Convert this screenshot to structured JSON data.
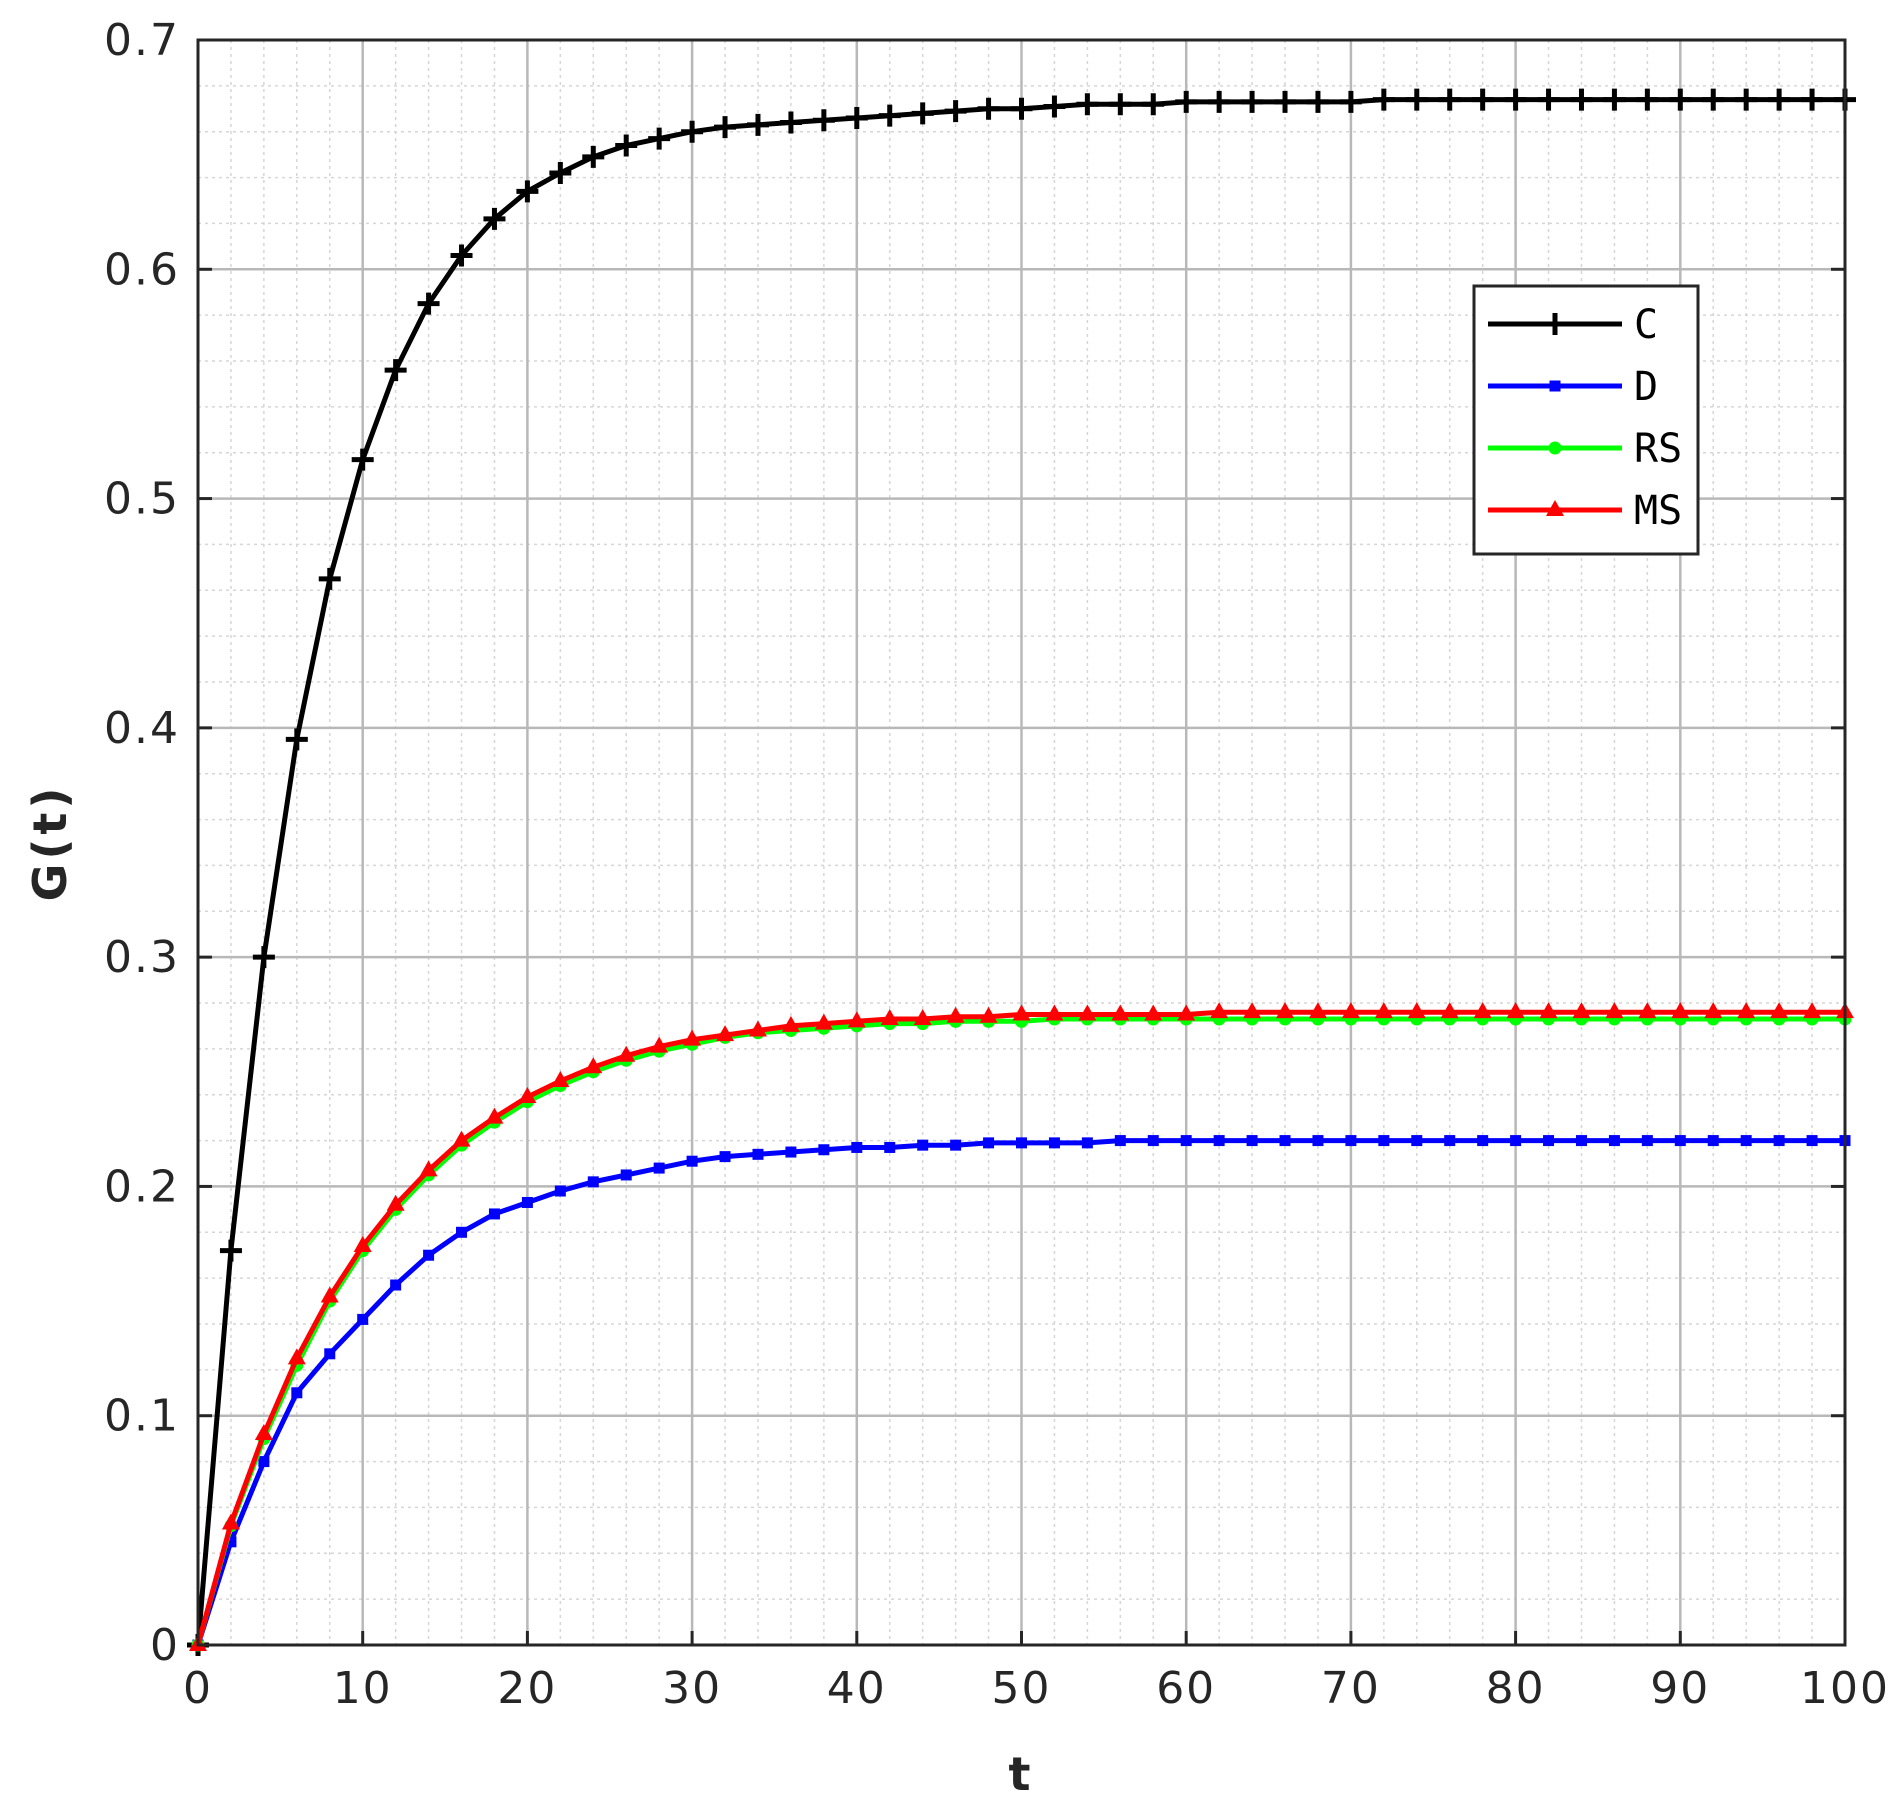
{
  "chart_data": {
    "type": "line",
    "title": "",
    "xlabel": "t",
    "ylabel": "G(t)",
    "xlim": [
      0,
      100
    ],
    "ylim": [
      0,
      0.7
    ],
    "xticks": [
      0,
      10,
      20,
      30,
      40,
      50,
      60,
      70,
      80,
      90,
      100
    ],
    "xtick_labels": [
      "0",
      "10",
      "20",
      "30",
      "40",
      "50",
      "60",
      "70",
      "80",
      "90",
      "100"
    ],
    "yticks": [
      0,
      0.1,
      0.2,
      0.3,
      0.4,
      0.5,
      0.6,
      0.7
    ],
    "ytick_labels": [
      "0",
      "0.1",
      "0.2",
      "0.3",
      "0.4",
      "0.5",
      "0.6",
      "0.7"
    ],
    "grid": true,
    "minor_grid": true,
    "legend_position": "top-right",
    "x": [
      0,
      2,
      4,
      6,
      8,
      10,
      12,
      14,
      16,
      18,
      20,
      22,
      24,
      26,
      28,
      30,
      32,
      34,
      36,
      38,
      40,
      42,
      44,
      46,
      48,
      50,
      52,
      54,
      56,
      58,
      60,
      62,
      64,
      66,
      68,
      70,
      72,
      74,
      76,
      78,
      80,
      82,
      84,
      86,
      88,
      90,
      92,
      94,
      96,
      98,
      100
    ],
    "series": [
      {
        "name": "C",
        "color": "#000000",
        "marker": "plus",
        "values": [
          0,
          0.172,
          0.3,
          0.395,
          0.465,
          0.517,
          0.556,
          0.585,
          0.606,
          0.622,
          0.634,
          0.642,
          0.649,
          0.654,
          0.657,
          0.66,
          0.662,
          0.663,
          0.664,
          0.665,
          0.666,
          0.667,
          0.668,
          0.669,
          0.67,
          0.67,
          0.671,
          0.672,
          0.672,
          0.672,
          0.673,
          0.673,
          0.673,
          0.673,
          0.673,
          0.673,
          0.674,
          0.674,
          0.674,
          0.674,
          0.674,
          0.674,
          0.674,
          0.674,
          0.674,
          0.674,
          0.674,
          0.674,
          0.674,
          0.674,
          0.674
        ]
      },
      {
        "name": "D",
        "color": "#0000ff",
        "marker": "square",
        "values": [
          0,
          0.045,
          0.08,
          0.11,
          0.127,
          0.142,
          0.157,
          0.17,
          0.18,
          0.188,
          0.193,
          0.198,
          0.202,
          0.205,
          0.208,
          0.211,
          0.213,
          0.214,
          0.215,
          0.216,
          0.217,
          0.217,
          0.218,
          0.218,
          0.219,
          0.219,
          0.219,
          0.219,
          0.22,
          0.22,
          0.22,
          0.22,
          0.22,
          0.22,
          0.22,
          0.22,
          0.22,
          0.22,
          0.22,
          0.22,
          0.22,
          0.22,
          0.22,
          0.22,
          0.22,
          0.22,
          0.22,
          0.22,
          0.22,
          0.22,
          0.22
        ]
      },
      {
        "name": "RS",
        "color": "#00ff00",
        "marker": "circle",
        "values": [
          0,
          0.052,
          0.09,
          0.122,
          0.15,
          0.172,
          0.19,
          0.205,
          0.218,
          0.228,
          0.237,
          0.244,
          0.25,
          0.255,
          0.259,
          0.262,
          0.265,
          0.267,
          0.268,
          0.269,
          0.27,
          0.271,
          0.271,
          0.272,
          0.272,
          0.272,
          0.273,
          0.273,
          0.273,
          0.273,
          0.273,
          0.273,
          0.273,
          0.273,
          0.273,
          0.273,
          0.273,
          0.273,
          0.273,
          0.273,
          0.273,
          0.273,
          0.273,
          0.273,
          0.273,
          0.273,
          0.273,
          0.273,
          0.273,
          0.273,
          0.273
        ]
      },
      {
        "name": "MS",
        "color": "#ff0000",
        "marker": "triangle",
        "values": [
          0,
          0.053,
          0.092,
          0.125,
          0.152,
          0.174,
          0.192,
          0.207,
          0.22,
          0.23,
          0.239,
          0.246,
          0.252,
          0.257,
          0.261,
          0.264,
          0.266,
          0.268,
          0.27,
          0.271,
          0.272,
          0.273,
          0.273,
          0.274,
          0.274,
          0.275,
          0.275,
          0.275,
          0.275,
          0.275,
          0.275,
          0.276,
          0.276,
          0.276,
          0.276,
          0.276,
          0.276,
          0.276,
          0.276,
          0.276,
          0.276,
          0.276,
          0.276,
          0.276,
          0.276,
          0.276,
          0.276,
          0.276,
          0.276,
          0.276,
          0.276
        ]
      }
    ]
  }
}
